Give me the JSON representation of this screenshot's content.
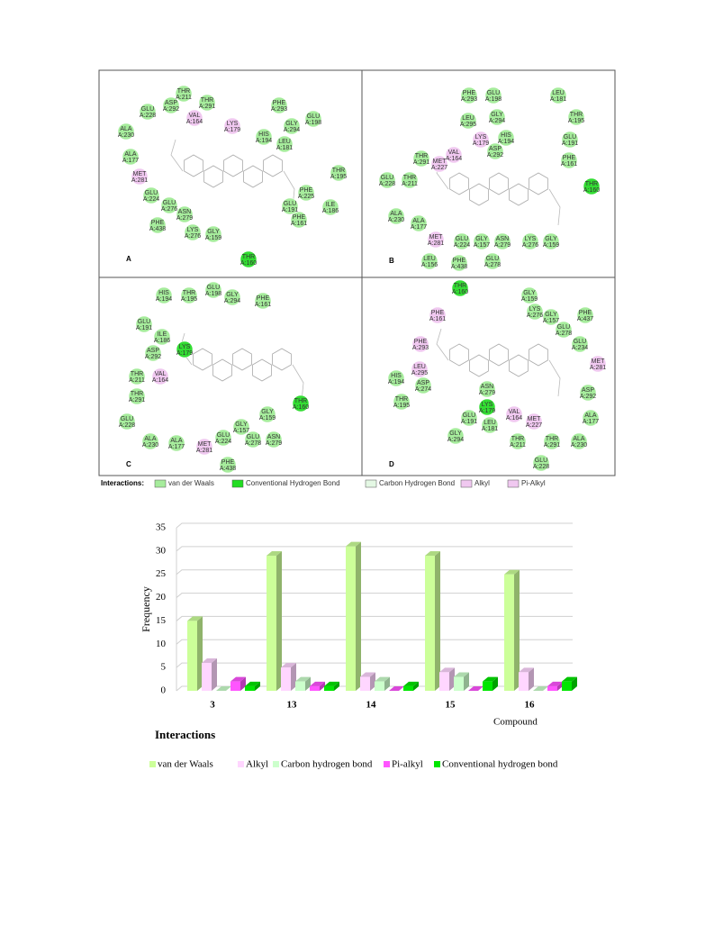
{
  "panels": [
    {
      "letter": "A",
      "residues": [
        [
          "THR",
          "A:211"
        ],
        [
          "ASP",
          "A:292"
        ],
        [
          "THR",
          "A:291"
        ],
        [
          "GLU",
          "A:228"
        ],
        [
          "VAL",
          "A:164"
        ],
        [
          "LYS",
          "A:179"
        ],
        [
          "PHE",
          "A:293"
        ],
        [
          "GLY",
          "A:294"
        ],
        [
          "GLU",
          "A:198"
        ],
        [
          "ALA",
          "A:230"
        ],
        [
          "HIS",
          "A:194"
        ],
        [
          "LEU",
          "A:181"
        ],
        [
          "ALA",
          "A:177"
        ],
        [
          "MET",
          "A:281"
        ],
        [
          "THR",
          "A:195"
        ],
        [
          "GLU",
          "A:224"
        ],
        [
          "PHE",
          "A:225"
        ],
        [
          "GLU",
          "A:276"
        ],
        [
          "ASN",
          "A:279"
        ],
        [
          "GLU",
          "A:191"
        ],
        [
          "ILE",
          "A:186"
        ],
        [
          "PHE",
          "A:161"
        ],
        [
          "PHE",
          "A:438"
        ],
        [
          "LYS",
          "A:276"
        ],
        [
          "GLY",
          "A:159"
        ],
        [
          "THR",
          "A:160"
        ]
      ]
    },
    {
      "letter": "B",
      "residues": [
        [
          "PHE",
          "A:293"
        ],
        [
          "GLU",
          "A:198"
        ],
        [
          "LEU",
          "A:181"
        ],
        [
          "LEU",
          "A:295"
        ],
        [
          "GLY",
          "A:294"
        ],
        [
          "THR",
          "A:195"
        ],
        [
          "HIS",
          "A:194"
        ],
        [
          "LYS",
          "A:179"
        ],
        [
          "GLU",
          "A:191"
        ],
        [
          "VAL",
          "A:164"
        ],
        [
          "ASP",
          "A:292"
        ],
        [
          "THR",
          "A:291"
        ],
        [
          "MET",
          "A:227"
        ],
        [
          "PHE",
          "A:161"
        ],
        [
          "GLU",
          "A:228"
        ],
        [
          "THR",
          "A:211"
        ],
        [
          "THR",
          "A:160"
        ],
        [
          "ALA",
          "A:230"
        ],
        [
          "ALA",
          "A:177"
        ],
        [
          "MET",
          "A:281"
        ],
        [
          "GLU",
          "A:224"
        ],
        [
          "GLY",
          "A:157"
        ],
        [
          "ASN",
          "A:279"
        ],
        [
          "LYS",
          "A:276"
        ],
        [
          "GLY",
          "A:159"
        ],
        [
          "LEU",
          "A:156"
        ],
        [
          "PHE",
          "A:438"
        ],
        [
          "GLU",
          "A:278"
        ]
      ]
    },
    {
      "letter": "C",
      "residues": [
        [
          "HIS",
          "A:194"
        ],
        [
          "THR",
          "A:195"
        ],
        [
          "GLU",
          "A:198"
        ],
        [
          "GLY",
          "A:294"
        ],
        [
          "PHE",
          "A:161"
        ],
        [
          "GLU",
          "A:191"
        ],
        [
          "ILE",
          "A:186"
        ],
        [
          "ASP",
          "A:292"
        ],
        [
          "LYS",
          "A:179"
        ],
        [
          "THR",
          "A:211"
        ],
        [
          "VAL",
          "A:164"
        ],
        [
          "THR",
          "A:291"
        ],
        [
          "THR",
          "A:160"
        ],
        [
          "GLY",
          "A:159"
        ],
        [
          "GLU",
          "A:228"
        ],
        [
          "GLY",
          "A:157"
        ],
        [
          "ALA",
          "A:230"
        ],
        [
          "ALA",
          "A:177"
        ],
        [
          "GLU",
          "A:224"
        ],
        [
          "GLU",
          "A:278"
        ],
        [
          "ASN",
          "A:279"
        ],
        [
          "MET",
          "A:281"
        ],
        [
          "PHE",
          "A:438"
        ]
      ]
    },
    {
      "letter": "D",
      "residues": [
        [
          "THR",
          "A:160"
        ],
        [
          "GLY",
          "A:159"
        ],
        [
          "PHE",
          "A:161"
        ],
        [
          "LYS",
          "A:276"
        ],
        [
          "GLY",
          "A:157"
        ],
        [
          "PHE",
          "A:437"
        ],
        [
          "GLU",
          "A:278"
        ],
        [
          "GLU",
          "A:234"
        ],
        [
          "PHE",
          "A:293"
        ],
        [
          "MET",
          "A:281"
        ],
        [
          "LEU",
          "A:295"
        ],
        [
          "HIS",
          "A:194"
        ],
        [
          "ASP",
          "A:274"
        ],
        [
          "ASN",
          "A:279"
        ],
        [
          "ASP",
          "A:292"
        ],
        [
          "THR",
          "A:195"
        ],
        [
          "LYS",
          "A:179"
        ],
        [
          "VAL",
          "A:164"
        ],
        [
          "GLU",
          "A:191"
        ],
        [
          "MET",
          "A:227"
        ],
        [
          "ALA",
          "A:177"
        ],
        [
          "LEU",
          "A:181"
        ],
        [
          "GLY",
          "A:294"
        ],
        [
          "THR",
          "A:211"
        ],
        [
          "THR",
          "A:291"
        ],
        [
          "ALA",
          "A:230"
        ],
        [
          "GLU",
          "A:228"
        ]
      ]
    }
  ],
  "interactions_legend": {
    "title": "Interactions:",
    "items": [
      "van der Waals",
      "Conventional Hydrogen Bond",
      "Carbon Hydrogen Bond",
      "Alkyl",
      "Pi-Alkyl"
    ]
  },
  "chart_data": {
    "type": "bar3d",
    "title": "Interactions",
    "ylabel": "Frequency",
    "xlabel": "Compound",
    "categories": [
      "3",
      "13",
      "14",
      "15",
      "16"
    ],
    "series": [
      {
        "name": "van der Waals",
        "color": "#ccff99",
        "values": [
          15,
          29,
          31,
          29,
          25
        ]
      },
      {
        "name": "Alkyl",
        "color": "#ffd6ff",
        "values": [
          6,
          5,
          3,
          4,
          4
        ]
      },
      {
        "name": "Carbon hydrogen bond",
        "color": "#ccffcc",
        "values": [
          0,
          2,
          2,
          3,
          0
        ]
      },
      {
        "name": "Pi-alkyl",
        "color": "#ff55ff",
        "values": [
          2,
          1,
          0,
          0,
          1
        ]
      },
      {
        "name": "Conventional hydrogen bond",
        "color": "#00e600",
        "values": [
          1,
          1,
          1,
          2,
          2
        ]
      }
    ],
    "ylim": [
      0,
      35
    ],
    "yticks": [
      0,
      5,
      10,
      15,
      20,
      25,
      30,
      35
    ],
    "grid": true
  }
}
